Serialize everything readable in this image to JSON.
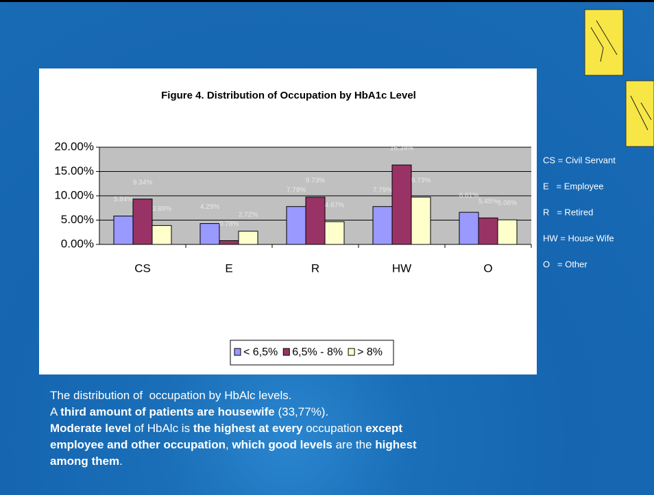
{
  "chart_data": {
    "type": "bar",
    "title": "Figure 4. Distribution of Occupation by HbA1c Level",
    "categories": [
      "CS",
      "E",
      "R",
      "HW",
      "O"
    ],
    "series": [
      {
        "name": "< 6,5%",
        "color": "#9999ff",
        "values": [
          5.84,
          4.29,
          7.79,
          7.79,
          6.61
        ],
        "value_labels": [
          "5.84%",
          "4.29%",
          "7.79%",
          "7.79%",
          "6.61%"
        ]
      },
      {
        "name": "6,5% - 8%",
        "color": "#993366",
        "values": [
          9.34,
          0.78,
          9.73,
          16.34,
          5.45
        ],
        "value_labels": [
          "9.34%",
          "0.78%",
          "9.73%",
          "16.34%",
          "5.45%"
        ]
      },
      {
        "name": "> 8%",
        "color": "#ffffcc",
        "values": [
          3.89,
          2.72,
          4.67,
          9.73,
          5.06
        ],
        "value_labels": [
          "3.89%",
          "2.72%",
          "4.67%",
          "9.73%",
          "5.06%"
        ]
      }
    ],
    "ylim": [
      0,
      20
    ],
    "yticks": [
      {
        "value": 0,
        "label": "0.00%"
      },
      {
        "value": 5,
        "label": "5.00%"
      },
      {
        "value": 10,
        "label": "10.00%"
      },
      {
        "value": 15,
        "label": "15.00%"
      },
      {
        "value": 20,
        "label": "20.00%"
      }
    ],
    "grid": true,
    "plot_background": "#c0c0c0",
    "legend": "bottom"
  },
  "abbreviations": [
    "CS = Civil Servant",
    "E   = Employee",
    "R   = Retired",
    "HW = House Wife",
    "O   = Other"
  ],
  "paragraph": [
    [
      {
        "text": "The distribution of  occupation by HbAlc levels.",
        "bold": false
      }
    ],
    [
      {
        "text": "A ",
        "bold": false
      },
      {
        "text": "third amount of patients are housewife",
        "bold": true
      },
      {
        "text": " (33,77%).",
        "bold": false
      }
    ],
    [
      {
        "text": "Moderate level",
        "bold": true
      },
      {
        "text": " of HbAlc is ",
        "bold": false
      },
      {
        "text": "the highest at every",
        "bold": true
      },
      {
        "text": " occupation ",
        "bold": false
      },
      {
        "text": "except",
        "bold": true
      }
    ],
    [
      {
        "text": "employee and other occupation",
        "bold": true
      },
      {
        "text": ", ",
        "bold": false
      },
      {
        "text": "which good levels",
        "bold": true
      },
      {
        "text": " are the ",
        "bold": false
      },
      {
        "text": "highest",
        "bold": true
      }
    ],
    [
      {
        "text": "among them",
        "bold": true
      },
      {
        "text": ".",
        "bold": false
      }
    ]
  ]
}
